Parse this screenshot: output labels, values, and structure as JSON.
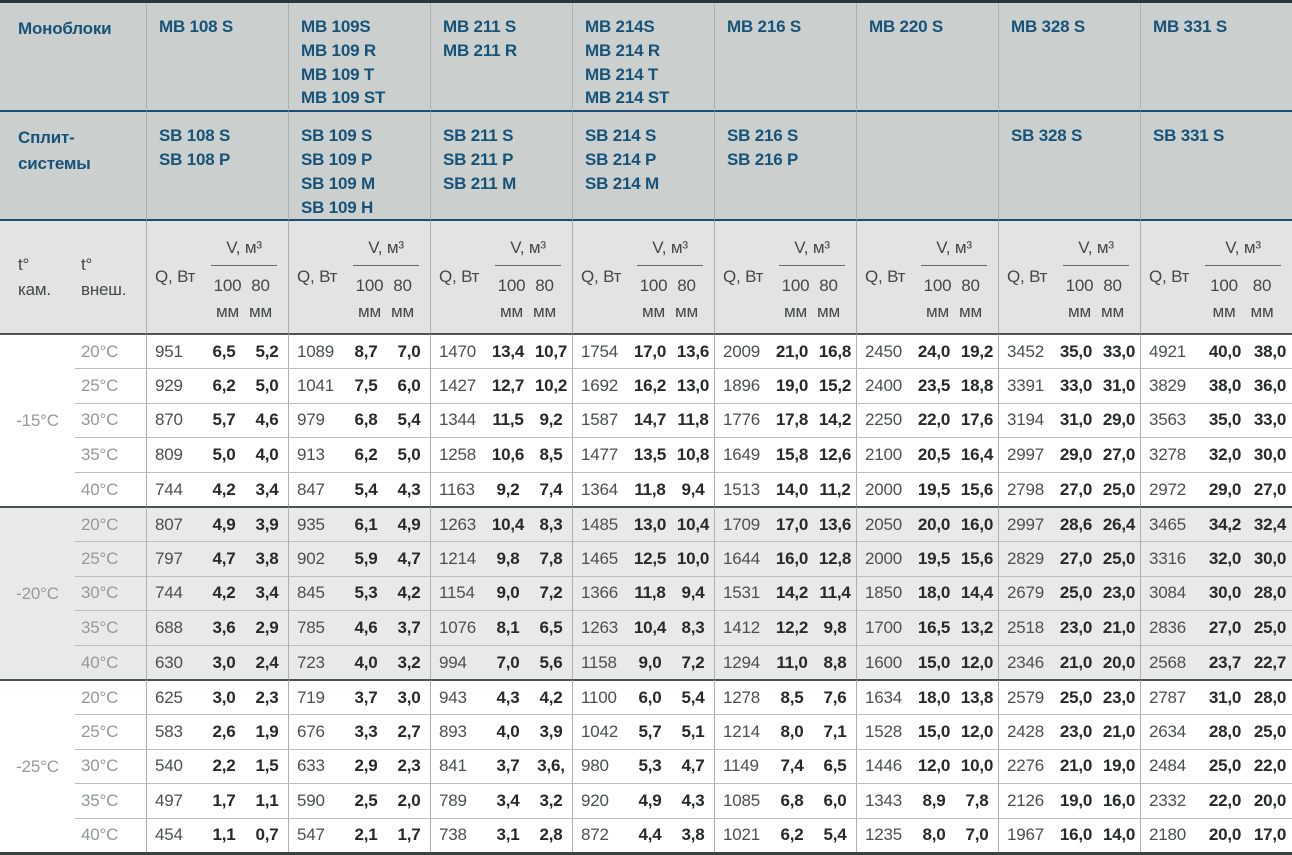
{
  "header": {
    "monoblocks_label": "Моноблоки",
    "split_label": "Сплит-\nсистемы",
    "t_cam": "t°\nкам.",
    "t_ext": "t°\nвнеш.",
    "q_label": "Q, Вт",
    "v_label": "V, м³",
    "col_100": "100\nмм",
    "col_80": "80\nмм"
  },
  "columns": [
    {
      "mb": [
        "MB 108 S"
      ],
      "sb": [
        "SB 108 S",
        "SB 108 P"
      ]
    },
    {
      "mb": [
        "MB 109S",
        "MB 109 R",
        "MB 109 T",
        "MB 109 ST"
      ],
      "sb": [
        "SB 109 S",
        "SB 109 P",
        "SB 109 M",
        "SB 109 H"
      ]
    },
    {
      "mb": [
        "MB 211 S",
        "MB 211 R"
      ],
      "sb": [
        "SB 211 S",
        "SB 211 P",
        "SB 211 M"
      ]
    },
    {
      "mb": [
        "MB 214S",
        "MB 214 R",
        "MB 214 T",
        "MB 214 ST"
      ],
      "sb": [
        "SB 214 S",
        "SB 214 P",
        "SB 214 M"
      ]
    },
    {
      "mb": [
        "MB 216 S"
      ],
      "sb": [
        "SB 216 S",
        "SB 216 P"
      ]
    },
    {
      "mb": [
        "MB 220 S"
      ],
      "sb": []
    },
    {
      "mb": [
        "MB 328 S"
      ],
      "sb": [
        "SB 328 S"
      ]
    },
    {
      "mb": [
        "MB 331 S"
      ],
      "sb": [
        "SB 331 S"
      ]
    }
  ],
  "groups": [
    {
      "t_cam": "-15°C",
      "rows": [
        {
          "t_ext": "20°C",
          "cells": [
            [
              "951",
              "6,5",
              "5,2"
            ],
            [
              "1089",
              "8,7",
              "7,0"
            ],
            [
              "1470",
              "13,4",
              "10,7"
            ],
            [
              "1754",
              "17,0",
              "13,6"
            ],
            [
              "2009",
              "21,0",
              "16,8"
            ],
            [
              "2450",
              "24,0",
              "19,2"
            ],
            [
              "3452",
              "35,0",
              "33,0"
            ],
            [
              "4921",
              "40,0",
              "38,0"
            ]
          ]
        },
        {
          "t_ext": "25°C",
          "cells": [
            [
              "929",
              "6,2",
              "5,0"
            ],
            [
              "1041",
              "7,5",
              "6,0"
            ],
            [
              "1427",
              "12,7",
              "10,2"
            ],
            [
              "1692",
              "16,2",
              "13,0"
            ],
            [
              "1896",
              "19,0",
              "15,2"
            ],
            [
              "2400",
              "23,5",
              "18,8"
            ],
            [
              "3391",
              "33,0",
              "31,0"
            ],
            [
              "3829",
              "38,0",
              "36,0"
            ]
          ]
        },
        {
          "t_ext": "30°C",
          "cells": [
            [
              "870",
              "5,7",
              "4,6"
            ],
            [
              "979",
              "6,8",
              "5,4"
            ],
            [
              "1344",
              "11,5",
              "9,2"
            ],
            [
              "1587",
              "14,7",
              "11,8"
            ],
            [
              "1776",
              "17,8",
              "14,2"
            ],
            [
              "2250",
              "22,0",
              "17,6"
            ],
            [
              "3194",
              "31,0",
              "29,0"
            ],
            [
              "3563",
              "35,0",
              "33,0"
            ]
          ]
        },
        {
          "t_ext": "35°C",
          "cells": [
            [
              "809",
              "5,0",
              "4,0"
            ],
            [
              "913",
              "6,2",
              "5,0"
            ],
            [
              "1258",
              "10,6",
              "8,5"
            ],
            [
              "1477",
              "13,5",
              "10,8"
            ],
            [
              "1649",
              "15,8",
              "12,6"
            ],
            [
              "2100",
              "20,5",
              "16,4"
            ],
            [
              "2997",
              "29,0",
              "27,0"
            ],
            [
              "3278",
              "32,0",
              "30,0"
            ]
          ]
        },
        {
          "t_ext": "40°C",
          "cells": [
            [
              "744",
              "4,2",
              "3,4"
            ],
            [
              "847",
              "5,4",
              "4,3"
            ],
            [
              "1163",
              "9,2",
              "7,4"
            ],
            [
              "1364",
              "11,8",
              "9,4"
            ],
            [
              "1513",
              "14,0",
              "11,2"
            ],
            [
              "2000",
              "19,5",
              "15,6"
            ],
            [
              "2798",
              "27,0",
              "25,0"
            ],
            [
              "2972",
              "29,0",
              "27,0"
            ]
          ]
        }
      ]
    },
    {
      "t_cam": "-20°C",
      "rows": [
        {
          "t_ext": "20°C",
          "cells": [
            [
              "807",
              "4,9",
              "3,9"
            ],
            [
              "935",
              "6,1",
              "4,9"
            ],
            [
              "1263",
              "10,4",
              "8,3"
            ],
            [
              "1485",
              "13,0",
              "10,4"
            ],
            [
              "1709",
              "17,0",
              "13,6"
            ],
            [
              "2050",
              "20,0",
              "16,0"
            ],
            [
              "2997",
              "28,6",
              "26,4"
            ],
            [
              "3465",
              "34,2",
              "32,4"
            ]
          ]
        },
        {
          "t_ext": "25°C",
          "cells": [
            [
              "797",
              "4,7",
              "3,8"
            ],
            [
              "902",
              "5,9",
              "4,7"
            ],
            [
              "1214",
              "9,8",
              "7,8"
            ],
            [
              "1465",
              "12,5",
              "10,0"
            ],
            [
              "1644",
              "16,0",
              "12,8"
            ],
            [
              "2000",
              "19,5",
              "15,6"
            ],
            [
              "2829",
              "27,0",
              "25,0"
            ],
            [
              "3316",
              "32,0",
              "30,0"
            ]
          ]
        },
        {
          "t_ext": "30°C",
          "cells": [
            [
              "744",
              "4,2",
              "3,4"
            ],
            [
              "845",
              "5,3",
              "4,2"
            ],
            [
              "1154",
              "9,0",
              "7,2"
            ],
            [
              "1366",
              "11,8",
              "9,4"
            ],
            [
              "1531",
              "14,2",
              "11,4"
            ],
            [
              "1850",
              "18,0",
              "14,4"
            ],
            [
              "2679",
              "25,0",
              "23,0"
            ],
            [
              "3084",
              "30,0",
              "28,0"
            ]
          ]
        },
        {
          "t_ext": "35°C",
          "cells": [
            [
              "688",
              "3,6",
              "2,9"
            ],
            [
              "785",
              "4,6",
              "3,7"
            ],
            [
              "1076",
              "8,1",
              "6,5"
            ],
            [
              "1263",
              "10,4",
              "8,3"
            ],
            [
              "1412",
              "12,2",
              "9,8"
            ],
            [
              "1700",
              "16,5",
              "13,2"
            ],
            [
              "2518",
              "23,0",
              "21,0"
            ],
            [
              "2836",
              "27,0",
              "25,0"
            ]
          ]
        },
        {
          "t_ext": "40°C",
          "cells": [
            [
              "630",
              "3,0",
              "2,4"
            ],
            [
              "723",
              "4,0",
              "3,2"
            ],
            [
              "994",
              "7,0",
              "5,6"
            ],
            [
              "1158",
              "9,0",
              "7,2"
            ],
            [
              "1294",
              "11,0",
              "8,8"
            ],
            [
              "1600",
              "15,0",
              "12,0"
            ],
            [
              "2346",
              "21,0",
              "20,0"
            ],
            [
              "2568",
              "23,7",
              "22,7"
            ]
          ]
        }
      ]
    },
    {
      "t_cam": "-25°C",
      "rows": [
        {
          "t_ext": "20°C",
          "cells": [
            [
              "625",
              "3,0",
              "2,3"
            ],
            [
              "719",
              "3,7",
              "3,0"
            ],
            [
              "943",
              "4,3",
              "4,2"
            ],
            [
              "1100",
              "6,0",
              "5,4"
            ],
            [
              "1278",
              "8,5",
              "7,6"
            ],
            [
              "1634",
              "18,0",
              "13,8"
            ],
            [
              "2579",
              "25,0",
              "23,0"
            ],
            [
              "2787",
              "31,0",
              "28,0"
            ]
          ]
        },
        {
          "t_ext": "25°C",
          "cells": [
            [
              "583",
              "2,6",
              "1,9"
            ],
            [
              "676",
              "3,3",
              "2,7"
            ],
            [
              "893",
              "4,0",
              "3,9"
            ],
            [
              "1042",
              "5,7",
              "5,1"
            ],
            [
              "1214",
              "8,0",
              "7,1"
            ],
            [
              "1528",
              "15,0",
              "12,0"
            ],
            [
              "2428",
              "23,0",
              "21,0"
            ],
            [
              "2634",
              "28,0",
              "25,0"
            ]
          ]
        },
        {
          "t_ext": "30°C",
          "cells": [
            [
              "540",
              "2,2",
              "1,5"
            ],
            [
              "633",
              "2,9",
              "2,3"
            ],
            [
              "841",
              "3,7",
              "3,6,"
            ],
            [
              "980",
              "5,3",
              "4,7"
            ],
            [
              "1149",
              "7,4",
              "6,5"
            ],
            [
              "1446",
              "12,0",
              "10,0"
            ],
            [
              "2276",
              "21,0",
              "19,0"
            ],
            [
              "2484",
              "25,0",
              "22,0"
            ]
          ]
        },
        {
          "t_ext": "35°C",
          "cells": [
            [
              "497",
              "1,7",
              "1,1"
            ],
            [
              "590",
              "2,5",
              "2,0"
            ],
            [
              "789",
              "3,4",
              "3,2"
            ],
            [
              "920",
              "4,9",
              "4,3"
            ],
            [
              "1085",
              "6,8",
              "6,0"
            ],
            [
              "1343",
              "8,9",
              "7,8"
            ],
            [
              "2126",
              "19,0",
              "16,0"
            ],
            [
              "2332",
              "22,0",
              "20,0"
            ]
          ]
        },
        {
          "t_ext": "40°C",
          "cells": [
            [
              "454",
              "1,1",
              "0,7"
            ],
            [
              "547",
              "2,1",
              "1,7"
            ],
            [
              "738",
              "3,1",
              "2,8"
            ],
            [
              "872",
              "4,4",
              "3,8"
            ],
            [
              "1021",
              "6,2",
              "5,4"
            ],
            [
              "1235",
              "8,0",
              "7,0"
            ],
            [
              "1967",
              "16,0",
              "14,0"
            ],
            [
              "2180",
              "20,0",
              "17,0"
            ]
          ]
        }
      ]
    }
  ],
  "colors": {
    "header_bg": "#cbd0cf",
    "subheader_bg": "#e1e4e3",
    "shade_row_bg": "#e8eae9",
    "navy_text": "#175379",
    "navy_line": "#1d4d73",
    "dark_line": "#4d5456",
    "light_line": "#babfbe",
    "gray_text": "#939a98"
  }
}
